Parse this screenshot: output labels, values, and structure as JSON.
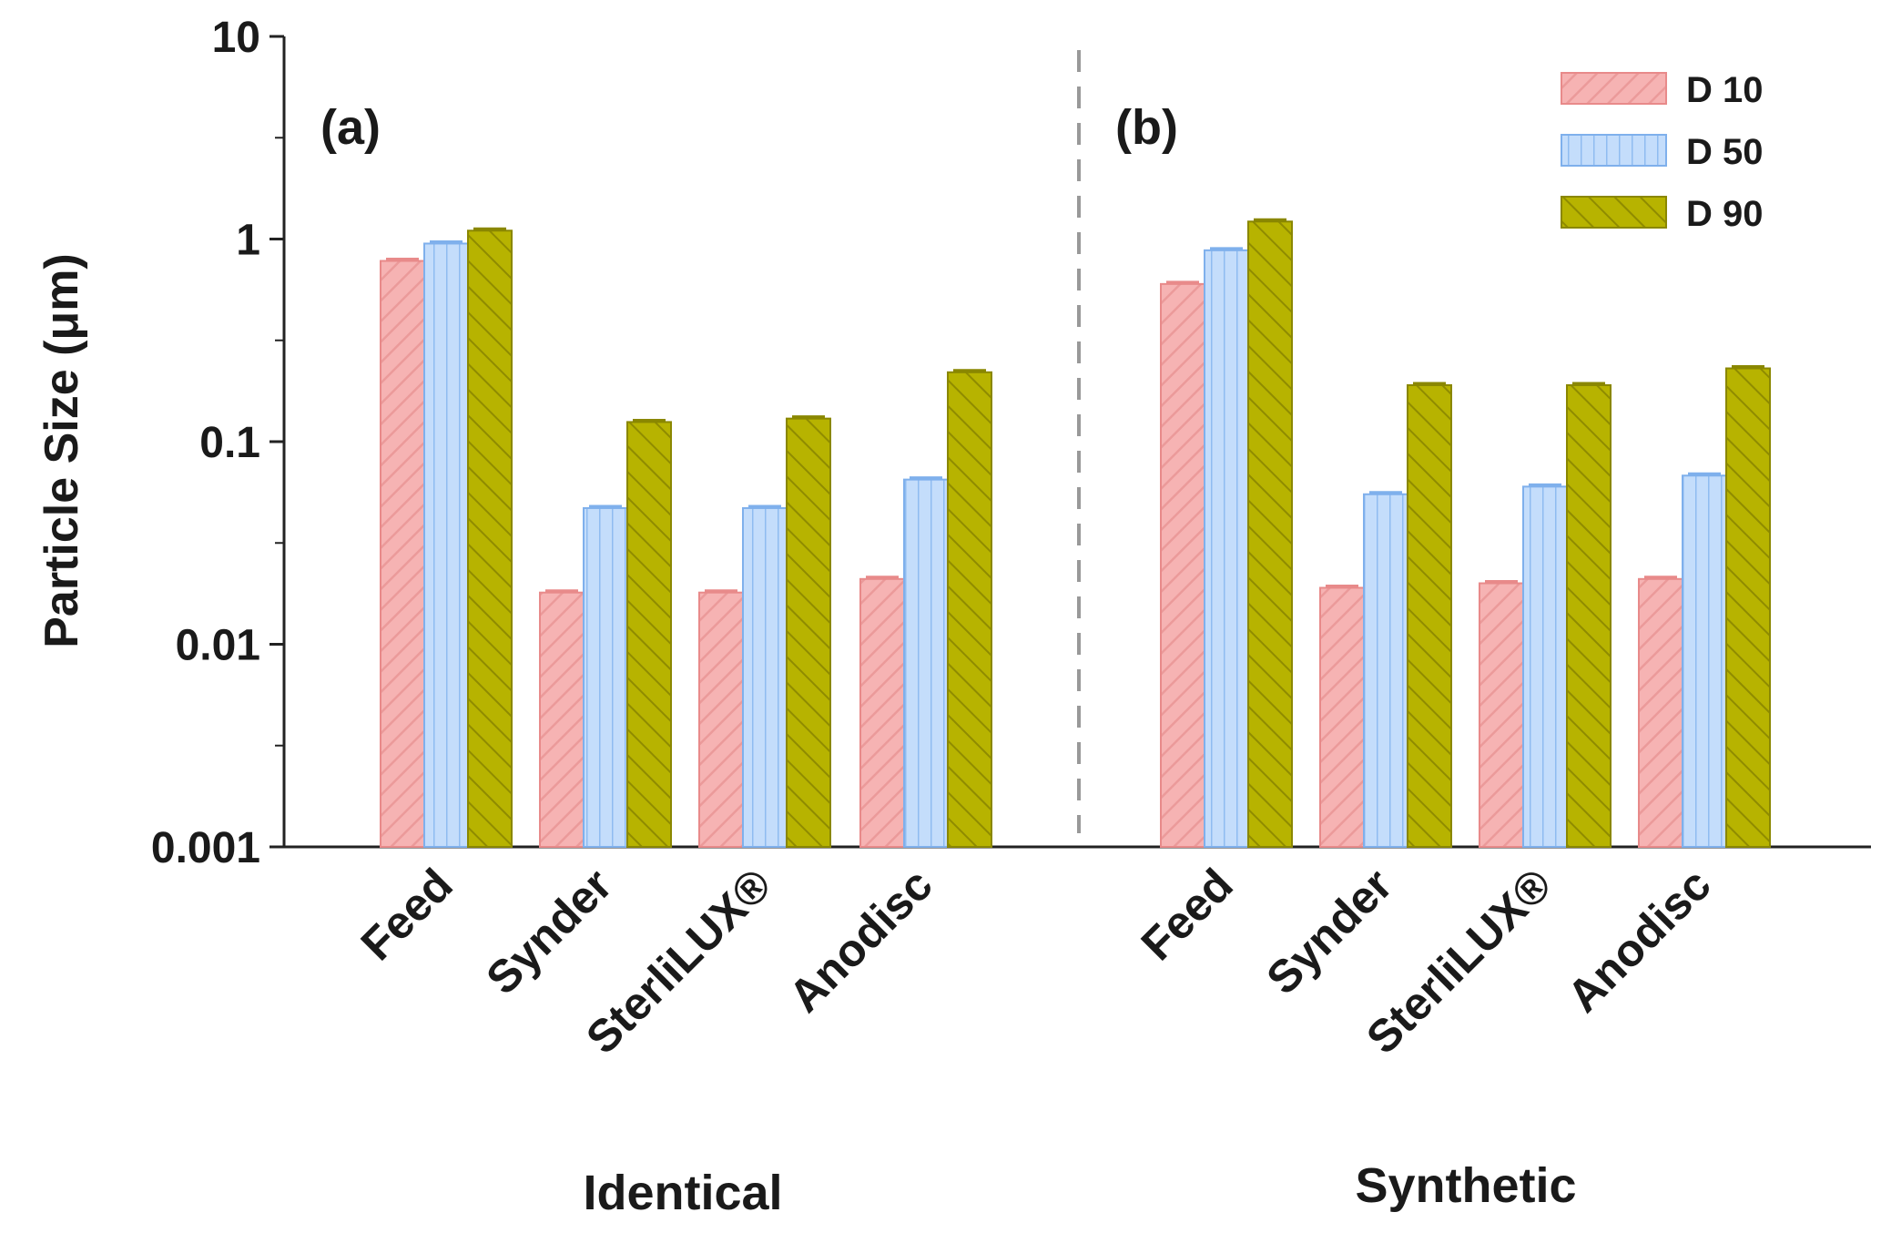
{
  "chart_data": {
    "type": "bar",
    "yscale": "log",
    "ylabel": "Particle Size (μm)",
    "ylim": [
      0.001,
      10
    ],
    "yticks": [
      "10",
      "1",
      "0.1",
      "0.01",
      "0.001"
    ],
    "ytick_values": [
      10,
      1,
      0.1,
      0.01,
      0.001
    ],
    "legend_position": "top-right",
    "legend": [
      "D 10",
      "D 50",
      "D 90"
    ],
    "series_colors": [
      "#f4a7a7",
      "#b9d7fb",
      "#b8b400"
    ],
    "series_strokes": [
      "#e88a8a",
      "#7fb0ec",
      "#8a8700"
    ],
    "groups": [
      {
        "panel": "(a)",
        "label": "Identical",
        "categories": [
          "Feed",
          "Synder",
          "SterliLUX®",
          "Anodisc"
        ],
        "series": [
          {
            "name": "D 10",
            "values": [
              0.78,
              0.018,
              0.018,
              0.021
            ]
          },
          {
            "name": "D 50",
            "values": [
              0.95,
              0.047,
              0.047,
              0.065
            ]
          },
          {
            "name": "D 90",
            "values": [
              1.1,
              0.125,
              0.13,
              0.22
            ]
          }
        ]
      },
      {
        "panel": "(b)",
        "label": "Synthetic",
        "categories": [
          "Feed",
          "Synder",
          "SterliLUX®",
          "Anodisc"
        ],
        "series": [
          {
            "name": "D 10",
            "values": [
              0.6,
              0.019,
              0.02,
              0.021
            ]
          },
          {
            "name": "D 50",
            "values": [
              0.88,
              0.055,
              0.06,
              0.068
            ]
          },
          {
            "name": "D 90",
            "values": [
              1.22,
              0.19,
              0.19,
              0.23
            ]
          }
        ]
      }
    ]
  }
}
